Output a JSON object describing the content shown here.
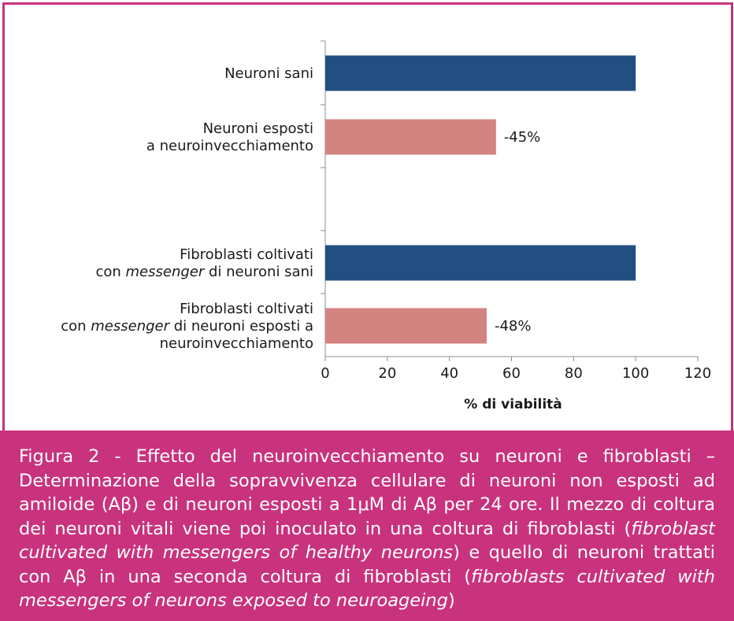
{
  "chart_data": {
    "type": "bar",
    "orientation": "horizontal",
    "categories": [
      [
        "Neuroni sani"
      ],
      [
        "Neuroni esposti",
        "a neuroinvecchiamento"
      ],
      [
        "Fibroblasti coltivati",
        "con messenger di neuroni sani"
      ],
      [
        "Fibroblasti coltivati",
        "con messenger di neuroni esposti a",
        "neuroinvecchiamento"
      ]
    ],
    "values": [
      100,
      55,
      100,
      52
    ],
    "data_labels": [
      "",
      "-45%",
      "",
      "-48%"
    ],
    "colors": [
      "#234e82",
      "#d38380",
      "#234e82",
      "#d38380"
    ],
    "xlabel": "% di viabilità",
    "xlim": [
      0,
      120
    ],
    "xticks": [
      0,
      20,
      40,
      60,
      80,
      100,
      120
    ],
    "grid": false,
    "legend": "none"
  },
  "caption": {
    "prefix": "Figura 2 - Effetto del neuroinvecchiamento su neuroni e fibroblasti – Determinazione della sopravvivenza cellulare di neuroni non esposti ad amiloide (Aβ) e di neuroni esposti a 1μM di Aβ per 24 ore. Il mezzo di coltura dei neuroni vitali viene poi inoculato in una coltura di fibroblasti (",
    "italic_1": "fibroblast cultivated with messengers of healthy neurons",
    "middle": ") e quello di neuroni trattati con Aβ in una seconda coltura di fibroblasti (",
    "italic_2": "fibroblasts cultivated with messengers of neurons exposed to neuroageing",
    "suffix": ")"
  }
}
